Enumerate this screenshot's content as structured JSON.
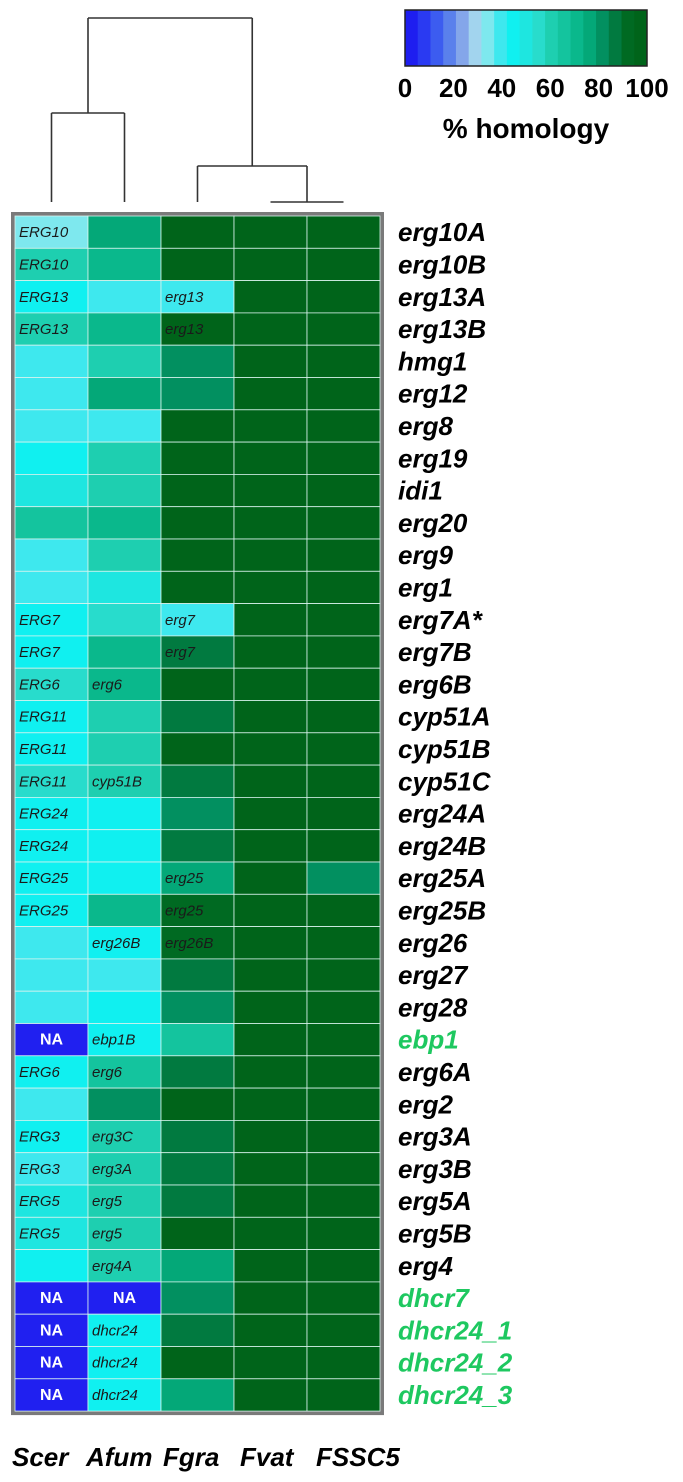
{
  "chart_data": {
    "type": "heatmap",
    "columns": [
      "Scer",
      "Afum",
      "Fgra",
      "Fvat",
      "FSSC5"
    ],
    "rows": [
      {
        "gene": "erg10A",
        "highlight": false,
        "values": [
          35,
          75,
          97,
          98,
          99
        ],
        "labels": [
          "ERG10",
          "",
          "",
          "",
          ""
        ]
      },
      {
        "gene": "erg10B",
        "highlight": false,
        "values": [
          60,
          73,
          97,
          98,
          99
        ],
        "labels": [
          "ERG10",
          "",
          "",
          "",
          ""
        ]
      },
      {
        "gene": "erg13A",
        "highlight": false,
        "values": [
          44,
          42,
          38,
          98,
          99
        ],
        "labels": [
          "ERG13",
          "",
          "erg13",
          "",
          ""
        ]
      },
      {
        "gene": "erg13B",
        "highlight": false,
        "values": [
          60,
          72,
          96,
          98,
          99
        ],
        "labels": [
          "ERG13",
          "",
          "erg13",
          "",
          ""
        ]
      },
      {
        "gene": "hmg1",
        "highlight": false,
        "values": [
          40,
          62,
          82,
          98,
          99
        ],
        "labels": [
          "",
          "",
          "",
          "",
          ""
        ]
      },
      {
        "gene": "erg12",
        "highlight": false,
        "values": [
          40,
          75,
          83,
          98,
          99
        ],
        "labels": [
          "",
          "",
          "",
          "",
          ""
        ]
      },
      {
        "gene": "erg8",
        "highlight": false,
        "values": [
          40,
          38,
          97,
          98,
          99
        ],
        "labels": [
          "",
          "",
          "",
          "",
          ""
        ]
      },
      {
        "gene": "erg19",
        "highlight": false,
        "values": [
          46,
          62,
          97,
          98,
          99
        ],
        "labels": [
          "",
          "",
          "",
          "",
          ""
        ]
      },
      {
        "gene": "idi1",
        "highlight": false,
        "values": [
          48,
          62,
          97,
          98,
          99
        ],
        "labels": [
          "",
          "",
          "",
          "",
          ""
        ]
      },
      {
        "gene": "erg20",
        "highlight": false,
        "values": [
          64,
          72,
          97,
          98,
          99
        ],
        "labels": [
          "",
          "",
          "",
          "",
          ""
        ]
      },
      {
        "gene": "erg9",
        "highlight": false,
        "values": [
          40,
          62,
          97,
          98,
          99
        ],
        "labels": [
          "",
          "",
          "",
          "",
          ""
        ]
      },
      {
        "gene": "erg1",
        "highlight": false,
        "values": [
          40,
          50,
          97,
          98,
          99
        ],
        "labels": [
          "",
          "",
          "",
          "",
          ""
        ]
      },
      {
        "gene": "erg7A*",
        "highlight": false,
        "values": [
          46,
          55,
          42,
          98,
          99
        ],
        "labels": [
          "ERG7",
          "",
          "erg7",
          "",
          ""
        ]
      },
      {
        "gene": "erg7B",
        "highlight": false,
        "values": [
          46,
          72,
          85,
          98,
          99
        ],
        "labels": [
          "ERG7",
          "",
          "erg7",
          "",
          ""
        ]
      },
      {
        "gene": "erg6B",
        "highlight": false,
        "values": [
          55,
          72,
          97,
          98,
          99
        ],
        "labels": [
          "ERG6",
          "erg6",
          "",
          "",
          ""
        ]
      },
      {
        "gene": "cyp51A",
        "highlight": false,
        "values": [
          44,
          58,
          85,
          98,
          99
        ],
        "labels": [
          "ERG11",
          "",
          "",
          "",
          ""
        ]
      },
      {
        "gene": "cyp51B",
        "highlight": false,
        "values": [
          44,
          60,
          97,
          98,
          99
        ],
        "labels": [
          "ERG11",
          "",
          "",
          "",
          ""
        ]
      },
      {
        "gene": "cyp51C",
        "highlight": false,
        "values": [
          55,
          58,
          85,
          98,
          99
        ],
        "labels": [
          "ERG11",
          "cyp51B",
          "",
          "",
          ""
        ]
      },
      {
        "gene": "erg24A",
        "highlight": false,
        "values": [
          44,
          46,
          83,
          98,
          99
        ],
        "labels": [
          "ERG24",
          "",
          "",
          "",
          ""
        ]
      },
      {
        "gene": "erg24B",
        "highlight": false,
        "values": [
          44,
          46,
          85,
          98,
          99
        ],
        "labels": [
          "ERG24",
          "",
          "",
          "",
          ""
        ]
      },
      {
        "gene": "erg25A",
        "highlight": false,
        "values": [
          44,
          46,
          77,
          98,
          84
        ],
        "labels": [
          "ERG25",
          "",
          "erg25",
          "",
          ""
        ]
      },
      {
        "gene": "erg25B",
        "highlight": false,
        "values": [
          44,
          72,
          93,
          98,
          99
        ],
        "labels": [
          "ERG25",
          "",
          "erg25",
          "",
          ""
        ]
      },
      {
        "gene": "erg26",
        "highlight": false,
        "values": [
          40,
          46,
          93,
          98,
          99
        ],
        "labels": [
          "",
          "erg26B",
          "erg26B",
          "",
          ""
        ]
      },
      {
        "gene": "erg27",
        "highlight": false,
        "values": [
          42,
          40,
          85,
          98,
          99
        ],
        "labels": [
          "",
          "",
          "",
          "",
          ""
        ]
      },
      {
        "gene": "erg28",
        "highlight": false,
        "values": [
          42,
          44,
          83,
          98,
          99
        ],
        "labels": [
          "",
          "",
          "",
          "",
          ""
        ]
      },
      {
        "gene": "ebp1",
        "highlight": true,
        "values": [
          null,
          44,
          64,
          98,
          99
        ],
        "labels": [
          "NA",
          "ebp1B",
          "",
          "",
          ""
        ]
      },
      {
        "gene": "erg6A",
        "highlight": false,
        "values": [
          44,
          64,
          85,
          98,
          99
        ],
        "labels": [
          "ERG6",
          "erg6",
          "",
          "",
          ""
        ]
      },
      {
        "gene": "erg2",
        "highlight": false,
        "values": [
          40,
          82,
          97,
          98,
          99
        ],
        "labels": [
          "",
          "",
          "",
          "",
          ""
        ]
      },
      {
        "gene": "erg3A",
        "highlight": false,
        "values": [
          46,
          62,
          85,
          98,
          99
        ],
        "labels": [
          "ERG3",
          "erg3C",
          "",
          "",
          ""
        ]
      },
      {
        "gene": "erg3B",
        "highlight": false,
        "values": [
          42,
          58,
          85,
          98,
          99
        ],
        "labels": [
          "ERG3",
          "erg3A",
          "",
          "",
          ""
        ]
      },
      {
        "gene": "erg5A",
        "highlight": false,
        "values": [
          48,
          62,
          85,
          98,
          99
        ],
        "labels": [
          "ERG5",
          "erg5",
          "",
          "",
          ""
        ]
      },
      {
        "gene": "erg5B",
        "highlight": false,
        "values": [
          48,
          62,
          97,
          98,
          99
        ],
        "labels": [
          "ERG5",
          "erg5",
          "",
          "",
          ""
        ]
      },
      {
        "gene": "erg4",
        "highlight": false,
        "values": [
          46,
          60,
          77,
          98,
          99
        ],
        "labels": [
          "",
          "erg4A",
          "",
          "",
          ""
        ]
      },
      {
        "gene": "dhcr7",
        "highlight": true,
        "values": [
          null,
          null,
          83,
          98,
          99
        ],
        "labels": [
          "NA",
          "NA",
          "",
          "",
          ""
        ]
      },
      {
        "gene": "dhcr24_1",
        "highlight": true,
        "values": [
          null,
          44,
          85,
          98,
          99
        ],
        "labels": [
          "NA",
          "dhcr24",
          "",
          "",
          ""
        ]
      },
      {
        "gene": "dhcr24_2",
        "highlight": true,
        "values": [
          null,
          44,
          97,
          98,
          99
        ],
        "labels": [
          "NA",
          "dhcr24",
          "",
          "",
          ""
        ]
      },
      {
        "gene": "dhcr24_3",
        "highlight": true,
        "values": [
          null,
          44,
          77,
          98,
          99
        ],
        "labels": [
          "NA",
          "dhcr24",
          "",
          "",
          ""
        ]
      }
    ],
    "color_scale": {
      "range": [
        0,
        100
      ],
      "ticks": [
        0,
        20,
        40,
        60,
        80,
        100
      ],
      "title": "% homology",
      "steps": [
        "#1e1ef0",
        "#2a3af2",
        "#3c5cf0",
        "#5a80ec",
        "#84a6ea",
        "#a2d4ee",
        "#7ee8ee",
        "#3ee8ee",
        "#10f0f0",
        "#1ee6e0",
        "#28dccc",
        "#1ecfb0",
        "#14c49e",
        "#0ab88c",
        "#04a878",
        "#029060",
        "#017a40",
        "#006a22",
        "#00641a"
      ],
      "na_color": "#2020f0"
    },
    "dendrogram": "columns clustered: (Scer, Afum), (Fgra, (Fvat, FSSC5))",
    "highlight_color": "#1ec860"
  }
}
